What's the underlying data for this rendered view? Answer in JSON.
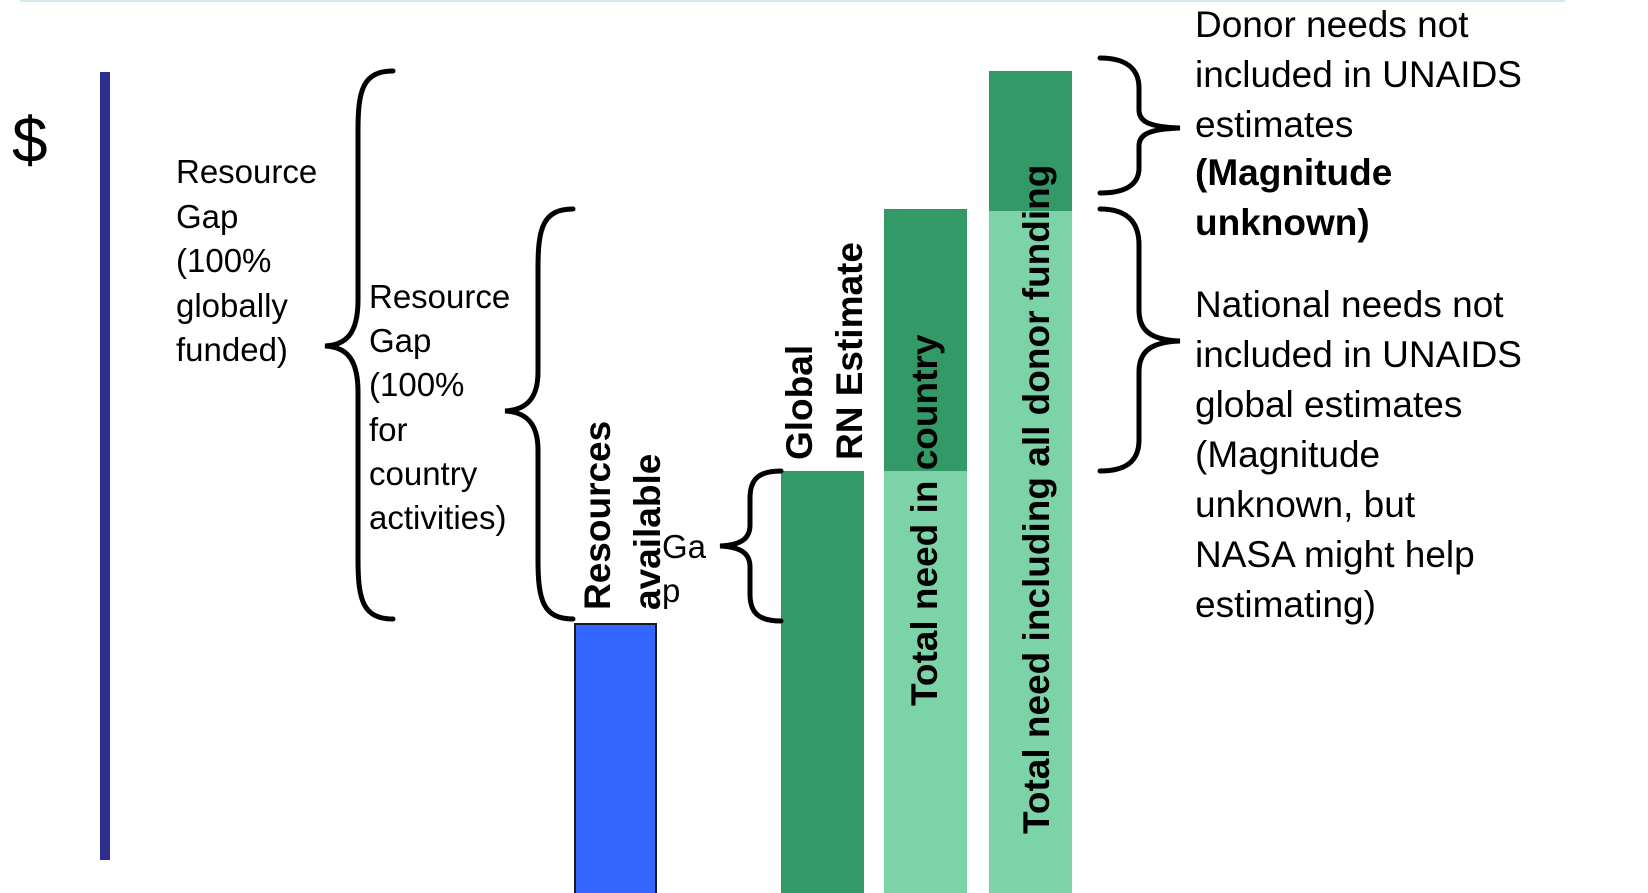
{
  "y_axis_symbol": "$",
  "colors": {
    "axis": "#2d2f8f",
    "resources_available": "#3366ff",
    "dark_green": "#339966",
    "light_green": "#7dd3a8"
  },
  "labels": {
    "gap_global": "Resource\nGap\n(100%\nglobally\nfunded)",
    "gap_country": "Resource\nGap\n(100%\nfor\ncountry\nactivities)",
    "gap_small": "Ga\np",
    "resources_available": [
      "Resources",
      "available"
    ],
    "global_rn": [
      "Global",
      "RN Estimate"
    ],
    "total_country": "Total need in country",
    "total_donor": "Total need including  all donor funding",
    "donor_needs": "Donor needs not\nincluded in UNAIDS\nestimates",
    "donor_needs_bold": "(Magnitude\nunknown)",
    "national_needs": "National needs not\nincluded in UNAIDS\nglobal estimates\n(Magnitude\nunknown, but\nNASA might help\nestimating)"
  }
}
